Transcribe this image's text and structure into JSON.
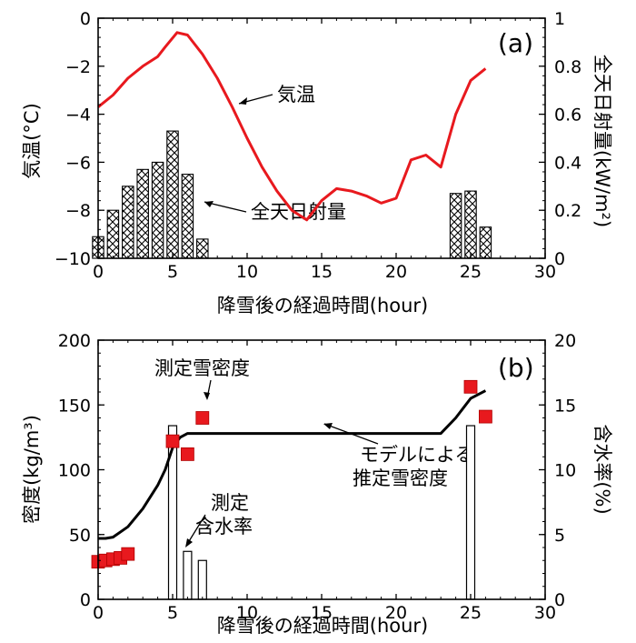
{
  "chart_data": [
    {
      "panel": "(a)",
      "type": "line+bar",
      "xlabel": "降雪後の経過時間(hour)",
      "ylabel_left": "気温(°C)",
      "ylabel_right": "全天日射量(kW/m²)",
      "xlim": [
        0,
        30
      ],
      "ylim_left": [
        -10,
        0
      ],
      "ylim_right": [
        0,
        1
      ],
      "xticks": [
        "0",
        "5",
        "10",
        "15",
        "20",
        "25",
        "30"
      ],
      "yticks_left": [
        "0",
        "−2",
        "−4",
        "−6",
        "−8",
        "−10"
      ],
      "yticks_right": [
        "1",
        "0.8",
        "0.6",
        "0.4",
        "0.2",
        "0"
      ],
      "series": [
        {
          "name": "気温",
          "type": "line",
          "color": "#e8191e",
          "x": [
            0,
            1,
            2,
            3,
            4,
            4.5,
            5.3,
            6,
            7,
            8,
            9,
            10,
            11,
            12,
            13,
            14,
            15,
            16,
            17,
            18,
            19,
            20,
            21,
            22,
            23,
            24,
            25,
            26
          ],
          "y": [
            -3.7,
            -3.2,
            -2.5,
            -2.0,
            -1.6,
            -1.2,
            -0.6,
            -0.7,
            -1.5,
            -2.5,
            -3.7,
            -5.0,
            -6.2,
            -7.2,
            -8.0,
            -8.4,
            -7.6,
            -7.1,
            -7.2,
            -7.4,
            -7.7,
            -7.5,
            -5.9,
            -5.7,
            -6.2,
            -4.0,
            -2.6,
            -2.1
          ]
        },
        {
          "name": "全天日射量",
          "type": "bar",
          "hatch": "crosshatch",
          "x": [
            0,
            1,
            2,
            3,
            4,
            5,
            6,
            7,
            24,
            25,
            26
          ],
          "y": [
            0.09,
            0.2,
            0.3,
            0.37,
            0.4,
            0.53,
            0.35,
            0.08,
            0.27,
            0.28,
            0.13
          ]
        }
      ],
      "annotations": [
        "気温",
        "全天日射量"
      ]
    },
    {
      "panel": "(b)",
      "type": "line+scatter+bar",
      "xlabel": "降雪後の経過時間(hour)",
      "ylabel_left": "密度(kg/m³)",
      "ylabel_right": "含水率(%)",
      "xlim": [
        0,
        30
      ],
      "ylim_left": [
        0,
        200
      ],
      "ylim_right": [
        0,
        20
      ],
      "xticks": [
        "0",
        "5",
        "10",
        "15",
        "20",
        "25",
        "30"
      ],
      "yticks_left": [
        "200",
        "150",
        "100",
        "50",
        "0"
      ],
      "yticks_right": [
        "20",
        "15",
        "10",
        "5",
        "0"
      ],
      "series": [
        {
          "name": "モデルによる推定雪密度",
          "type": "line",
          "color": "#000000",
          "x": [
            0,
            0.5,
            1,
            2,
            3,
            4,
            4.5,
            5,
            5.5,
            6,
            23,
            24,
            25,
            26
          ],
          "y": [
            47,
            47,
            48,
            56,
            70,
            88,
            100,
            117,
            125,
            128,
            128,
            140,
            155,
            161
          ]
        },
        {
          "name": "測定雪密度",
          "type": "scatter",
          "marker": "square",
          "color": "#e8191e",
          "x": [
            0,
            0.5,
            1,
            1.5,
            2,
            5,
            6,
            7,
            25,
            26
          ],
          "y": [
            29,
            30,
            31,
            32,
            35,
            122,
            112,
            140,
            164,
            141
          ]
        },
        {
          "name": "測定含水率",
          "type": "bar",
          "x": [
            5,
            6,
            7,
            25
          ],
          "y": [
            13.4,
            3.7,
            3.0,
            13.4
          ]
        }
      ],
      "annotations": [
        "測定雪密度",
        "モデルによる",
        "推定雪密度",
        "測定",
        "含水率"
      ]
    }
  ]
}
